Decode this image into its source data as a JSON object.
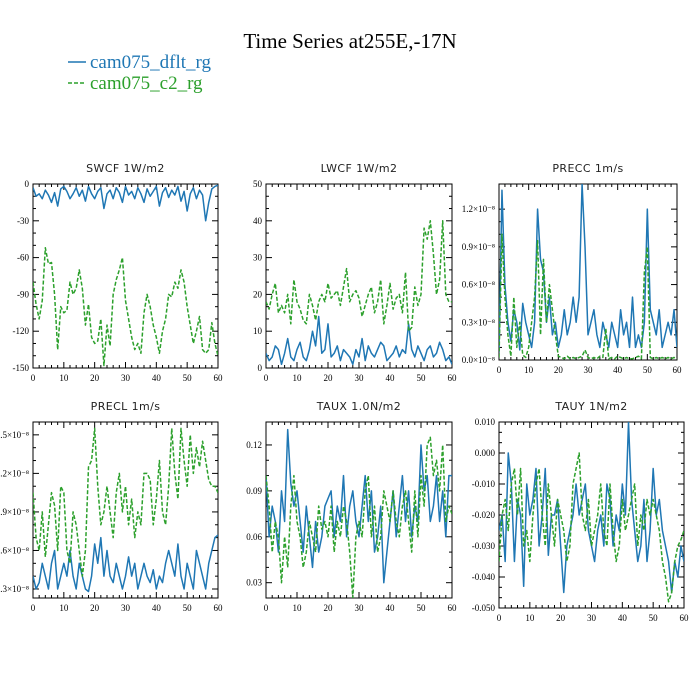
{
  "figure": {
    "title": "Time Series at255E,-17N",
    "legend": [
      {
        "label": "cam075_dflt_rg",
        "color": "#1f77b4",
        "dash": "solid"
      },
      {
        "label": "cam075_c2_rg",
        "color": "#2ca02c",
        "dash": "dashed"
      }
    ]
  },
  "chart_data": [
    {
      "type": "line",
      "title": "SWCF   1W/m2",
      "xlim": [
        0,
        60
      ],
      "ylim": [
        -150,
        0
      ],
      "xticks": [
        0,
        10,
        20,
        30,
        40,
        50,
        60
      ],
      "yticks": [
        0,
        -30,
        -60,
        -90,
        -120,
        -150
      ],
      "ytick_labels": [
        "0",
        "-30",
        "-60",
        "-90",
        "-120",
        "-150"
      ],
      "series": [
        {
          "name": "cam075_dflt_rg",
          "values": [
            -3,
            -10,
            -8,
            -12,
            -5,
            -9,
            -15,
            -7,
            -18,
            -4,
            -2,
            -6,
            -12,
            -8,
            -3,
            -10,
            -5,
            -14,
            -2,
            -8,
            -12,
            -6,
            -3,
            -20,
            -8,
            -5,
            -12,
            -3,
            -7,
            -15,
            -2,
            -9,
            -6,
            -12,
            -3,
            -8,
            -15,
            -4,
            -10,
            -6,
            -2,
            -18,
            -7,
            -3,
            -11,
            -5,
            -9,
            -2,
            -14,
            -6,
            -22,
            -8,
            -3,
            -12,
            -5,
            -9,
            -30,
            -15,
            -4,
            -2,
            -1
          ]
        },
        {
          "name": "cam075_c2_rg",
          "values": [
            -80,
            -98,
            -110,
            -95,
            -52,
            -65,
            -64,
            -90,
            -135,
            -100,
            -105,
            -103,
            -80,
            -90,
            -85,
            -70,
            -85,
            -115,
            -98,
            -125,
            -130,
            -128,
            -110,
            -148,
            -115,
            -132,
            -90,
            -78,
            -70,
            -60,
            -95,
            -110,
            -125,
            -135,
            -130,
            -138,
            -105,
            -90,
            -100,
            -115,
            -125,
            -138,
            -120,
            -110,
            -90,
            -92,
            -80,
            -85,
            -70,
            -80,
            -100,
            -115,
            -130,
            -120,
            -108,
            -135,
            -138,
            -135,
            -113,
            -130,
            -140
          ]
        }
      ]
    },
    {
      "type": "line",
      "title": "LWCF   1W/m2",
      "xlim": [
        0,
        60
      ],
      "ylim": [
        0,
        50
      ],
      "xticks": [
        0,
        10,
        20,
        30,
        40,
        50,
        60
      ],
      "yticks": [
        0,
        10,
        20,
        30,
        40,
        50
      ],
      "ytick_labels": [
        "0",
        "10",
        "20",
        "30",
        "40",
        "50"
      ],
      "series": [
        {
          "name": "cam075_dflt_rg",
          "values": [
            4,
            2,
            3,
            6,
            5,
            1,
            4,
            8,
            3,
            2,
            5,
            7,
            3,
            2,
            5,
            10,
            6,
            14,
            4,
            5,
            12,
            3,
            4,
            6,
            2,
            5,
            4,
            3,
            1,
            5,
            3,
            8,
            2,
            6,
            4,
            3,
            5,
            7,
            6,
            2,
            3,
            4,
            6,
            3,
            5,
            4,
            12,
            5,
            3,
            6,
            4,
            2,
            5,
            6,
            3,
            4,
            7,
            5,
            2,
            3,
            1
          ]
        },
        {
          "name": "cam075_c2_rg",
          "values": [
            18,
            16,
            20,
            23,
            15,
            17,
            15,
            20,
            12,
            24,
            18,
            16,
            13,
            12,
            20,
            17,
            13,
            18,
            20,
            18,
            23,
            19,
            20,
            21,
            17,
            22,
            27,
            18,
            20,
            21,
            19,
            14,
            17,
            20,
            22,
            15,
            18,
            24,
            12,
            17,
            23,
            16,
            19,
            20,
            15,
            26,
            10,
            11,
            22,
            17,
            20,
            38,
            35,
            40,
            31,
            20,
            24,
            40,
            20,
            18,
            18
          ]
        }
      ]
    },
    {
      "type": "line",
      "title": "PRECC   1m/s",
      "xlim": [
        0,
        60
      ],
      "ylim": [
        0,
        1.4e-08
      ],
      "xticks": [
        0,
        10,
        20,
        30,
        40,
        50,
        60
      ],
      "yticks": [
        0,
        3e-09,
        6e-09,
        9e-09,
        1.2e-08
      ],
      "ytick_labels": [
        "0.0×10⁻⁸",
        "0.3×10⁻⁸",
        "0.6×10⁻⁸",
        "0.9×10⁻⁸",
        "1.2×10⁻⁸"
      ],
      "series": [
        {
          "name": "cam075_dflt_rg",
          "values": [
            6e-10,
            1.35e-08,
            6e-09,
            3e-09,
            1.5e-09,
            4e-09,
            3e-09,
            8e-10,
            4.5e-09,
            3e-09,
            2e-09,
            1e-09,
            3e-09,
            1.2e-08,
            8e-09,
            7e-09,
            3e-09,
            5e-09,
            2e-09,
            3e-09,
            1e-09,
            2e-09,
            4e-09,
            2e-09,
            3e-09,
            5e-09,
            3e-09,
            5e-09,
            1.4e-08,
            9e-09,
            2e-09,
            3e-09,
            4e-09,
            2e-09,
            1e-09,
            3e-09,
            2e-09,
            1e-09,
            3e-09,
            2e-09,
            1e-09,
            4e-09,
            2e-09,
            3e-09,
            1e-09,
            5e-09,
            1e-09,
            2e-09,
            1e-09,
            3e-09,
            1.2e-08,
            4e-09,
            3e-09,
            2e-09,
            4e-09,
            1e-09,
            2e-09,
            3e-09,
            2e-09,
            4e-09,
            1e-09
          ]
        },
        {
          "name": "cam075_c2_rg",
          "values": [
            2e-10,
            1e-08,
            5e-09,
            2e-09,
            3e-10,
            5e-09,
            1e-09,
            3e-09,
            4e-10,
            2e-10,
            1e-09,
            3e-09,
            5e-09,
            9.5e-09,
            2e-09,
            8e-09,
            3e-09,
            6e-09,
            4e-09,
            2e-09,
            3e-10,
            2e-10,
            1e-10,
            3e-10,
            1e-10,
            2e-10,
            1e-10,
            2e-10,
            3e-10,
            8e-10,
            2e-10,
            1e-10,
            2e-10,
            1e-10,
            3e-10,
            2e-10,
            2.5e-09,
            1e-10,
            2e-10,
            1e-10,
            3e-10,
            2e-10,
            1e-10,
            2e-10,
            1e-10,
            1e-10,
            2e-10,
            3e-10,
            1e-10,
            7e-09,
            9e-09,
            2e-10,
            1e-10,
            2e-10,
            1e-10,
            2e-10,
            1e-10,
            2e-10,
            1e-10,
            2e-10,
            1e-10
          ]
        }
      ]
    },
    {
      "type": "line",
      "title": "PRECL   1m/s",
      "xlim": [
        0,
        60
      ],
      "ylim": [
        2.3e-09,
        1.6e-08
      ],
      "xticks": [
        0,
        10,
        20,
        30,
        40,
        50,
        60
      ],
      "yticks": [
        3e-09,
        6e-09,
        9e-09,
        1.2e-08,
        1.5e-08
      ],
      "ytick_labels": [
        ".3×10⁻⁸",
        ".6×10⁻⁸",
        ".9×10⁻⁸",
        ".2×10⁻⁸",
        ".5×10⁻⁸"
      ],
      "series": [
        {
          "name": "cam075_dflt_rg",
          "values": [
            4e-09,
            3e-09,
            3.5e-09,
            5e-09,
            4e-09,
            3e-09,
            5e-09,
            6e-09,
            3e-09,
            4e-09,
            5e-09,
            4e-09,
            6e-09,
            4e-09,
            3e-09,
            5e-09,
            4e-09,
            3e-09,
            2.8e-09,
            4e-09,
            6.5e-09,
            5e-09,
            7e-09,
            4e-09,
            6e-09,
            4e-09,
            3.5e-09,
            5e-09,
            4e-09,
            3e-09,
            4e-09,
            5.5e-09,
            4e-09,
            5e-09,
            3e-09,
            4e-09,
            5e-09,
            4e-09,
            3.5e-09,
            4.5e-09,
            3e-09,
            4e-09,
            3.5e-09,
            5e-09,
            6e-09,
            5e-09,
            4e-09,
            6.5e-09,
            4e-09,
            3e-09,
            5e-09,
            4e-09,
            3e-09,
            6e-09,
            5e-09,
            4e-09,
            3e-09,
            5e-09,
            6e-09,
            7e-09,
            7.2e-09
          ]
        },
        {
          "name": "cam075_c2_rg",
          "values": [
            1.05e-08,
            7e-09,
            6e-09,
            9e-09,
            5.5e-09,
            8e-09,
            1.05e-08,
            9.5e-09,
            6e-09,
            1.1e-08,
            1.05e-08,
            6e-09,
            5e-09,
            9e-09,
            8e-09,
            6e-09,
            4e-09,
            6e-09,
            1.25e-08,
            1.3e-08,
            1.55e-08,
            1.1e-08,
            8e-09,
            9e-09,
            1.1e-08,
            9e-09,
            7e-09,
            1.05e-08,
            1.2e-08,
            9e-09,
            1.1e-08,
            8e-09,
            1e-08,
            7e-09,
            9e-09,
            8e-09,
            1.2e-08,
            1.2e-08,
            1.15e-08,
            8e-09,
            1e-08,
            1.3e-08,
            9e-09,
            8e-09,
            1.1e-08,
            1.55e-08,
            1.2e-08,
            1e-08,
            1.55e-08,
            1.3e-08,
            1.1e-08,
            1.5e-08,
            1.2e-08,
            1.4e-08,
            1.25e-08,
            1.45e-08,
            1.3e-08,
            1.15e-08,
            1.1e-08,
            1.1e-08,
            1.05e-08
          ]
        }
      ]
    },
    {
      "type": "line",
      "title": "TAUX   1.0N/m2",
      "xlim": [
        0,
        60
      ],
      "ylim": [
        0.02,
        0.135
      ],
      "xticks": [
        0,
        10,
        20,
        30,
        40,
        50,
        60
      ],
      "yticks": [
        0.03,
        0.06,
        0.09,
        0.12
      ],
      "ytick_labels": [
        "0.03",
        "0.06",
        "0.09",
        "0.12"
      ],
      "series": [
        {
          "name": "cam075_dflt_rg",
          "values": [
            0.1,
            0.06,
            0.08,
            0.07,
            0.05,
            0.09,
            0.07,
            0.13,
            0.095,
            0.08,
            0.09,
            0.07,
            0.05,
            0.08,
            0.06,
            0.04,
            0.07,
            0.05,
            0.06,
            0.08,
            0.085,
            0.09,
            0.06,
            0.08,
            0.07,
            0.1,
            0.06,
            0.08,
            0.09,
            0.07,
            0.06,
            0.08,
            0.1,
            0.07,
            0.09,
            0.05,
            0.06,
            0.08,
            0.03,
            0.05,
            0.07,
            0.09,
            0.06,
            0.08,
            0.1,
            0.07,
            0.09,
            0.06,
            0.08,
            0.07,
            0.12,
            0.09,
            0.1,
            0.07,
            0.08,
            0.1,
            0.07,
            0.09,
            0.06,
            0.1,
            0.1
          ]
        },
        {
          "name": "cam075_c2_rg",
          "values": [
            0.1,
            0.08,
            0.05,
            0.07,
            0.06,
            0.03,
            0.06,
            0.04,
            0.08,
            0.1,
            0.07,
            0.06,
            0.04,
            0.05,
            0.07,
            0.06,
            0.05,
            0.08,
            0.065,
            0.07,
            0.06,
            0.08,
            0.05,
            0.07,
            0.06,
            0.08,
            0.07,
            0.05,
            0.02,
            0.06,
            0.07,
            0.06,
            0.09,
            0.1,
            0.06,
            0.08,
            0.05,
            0.06,
            0.09,
            0.08,
            0.07,
            0.09,
            0.07,
            0.06,
            0.08,
            0.09,
            0.07,
            0.05,
            0.09,
            0.06,
            0.1,
            0.08,
            0.12,
            0.125,
            0.1,
            0.11,
            0.09,
            0.12,
            0.07,
            0.08,
            0.075
          ]
        }
      ]
    },
    {
      "type": "line",
      "title": "TAUY   1N/m2",
      "xlim": [
        0,
        60
      ],
      "ylim": [
        -0.05,
        0.01
      ],
      "xticks": [
        0,
        10,
        20,
        30,
        40,
        50,
        60
      ],
      "yticks": [
        -0.05,
        -0.04,
        -0.03,
        -0.02,
        -0.01,
        0,
        0.01
      ],
      "ytick_labels": [
        "-0.050",
        "-0.040",
        "-0.030",
        "-0.020",
        "-0.010",
        "0.000",
        "0.010"
      ],
      "series": [
        {
          "name": "cam075_dflt_rg",
          "values": [
            -0.025,
            -0.02,
            -0.035,
            0,
            -0.01,
            -0.035,
            -0.015,
            -0.02,
            -0.043,
            -0.01,
            -0.02,
            -0.015,
            -0.005,
            -0.03,
            -0.02,
            -0.005,
            -0.033,
            -0.02,
            -0.02,
            -0.015,
            -0.03,
            -0.045,
            -0.03,
            -0.025,
            -0.02,
            -0.01,
            -0.02,
            -0.015,
            -0.01,
            -0.025,
            -0.03,
            -0.035,
            -0.025,
            -0.02,
            -0.03,
            -0.01,
            -0.015,
            -0.03,
            -0.02,
            -0.025,
            -0.01,
            -0.02,
            0.01,
            -0.015,
            -0.025,
            -0.035,
            -0.03,
            -0.015,
            -0.035,
            -0.025,
            -0.005,
            -0.02,
            -0.015,
            -0.025,
            -0.03,
            -0.035,
            -0.045,
            -0.035,
            -0.04,
            -0.03,
            -0.035
          ]
        },
        {
          "name": "cam075_c2_rg",
          "values": [
            -0.035,
            -0.02,
            -0.015,
            -0.025,
            -0.01,
            -0.005,
            -0.02,
            -0.005,
            -0.03,
            -0.025,
            -0.035,
            -0.02,
            -0.01,
            -0.005,
            -0.02,
            -0.03,
            -0.01,
            -0.02,
            -0.03,
            -0.015,
            -0.02,
            -0.025,
            -0.035,
            -0.03,
            -0.01,
            -0.005,
            0,
            -0.02,
            -0.025,
            -0.015,
            -0.03,
            -0.025,
            -0.02,
            -0.01,
            -0.025,
            -0.03,
            -0.01,
            -0.025,
            -0.035,
            -0.03,
            -0.015,
            -0.025,
            -0.02,
            -0.015,
            -0.01,
            -0.03,
            -0.02,
            -0.025,
            -0.015,
            -0.02,
            -0.015,
            -0.02,
            -0.025,
            -0.035,
            -0.04,
            -0.048,
            -0.045,
            -0.035,
            -0.03,
            -0.028,
            -0.025
          ]
        }
      ]
    }
  ]
}
